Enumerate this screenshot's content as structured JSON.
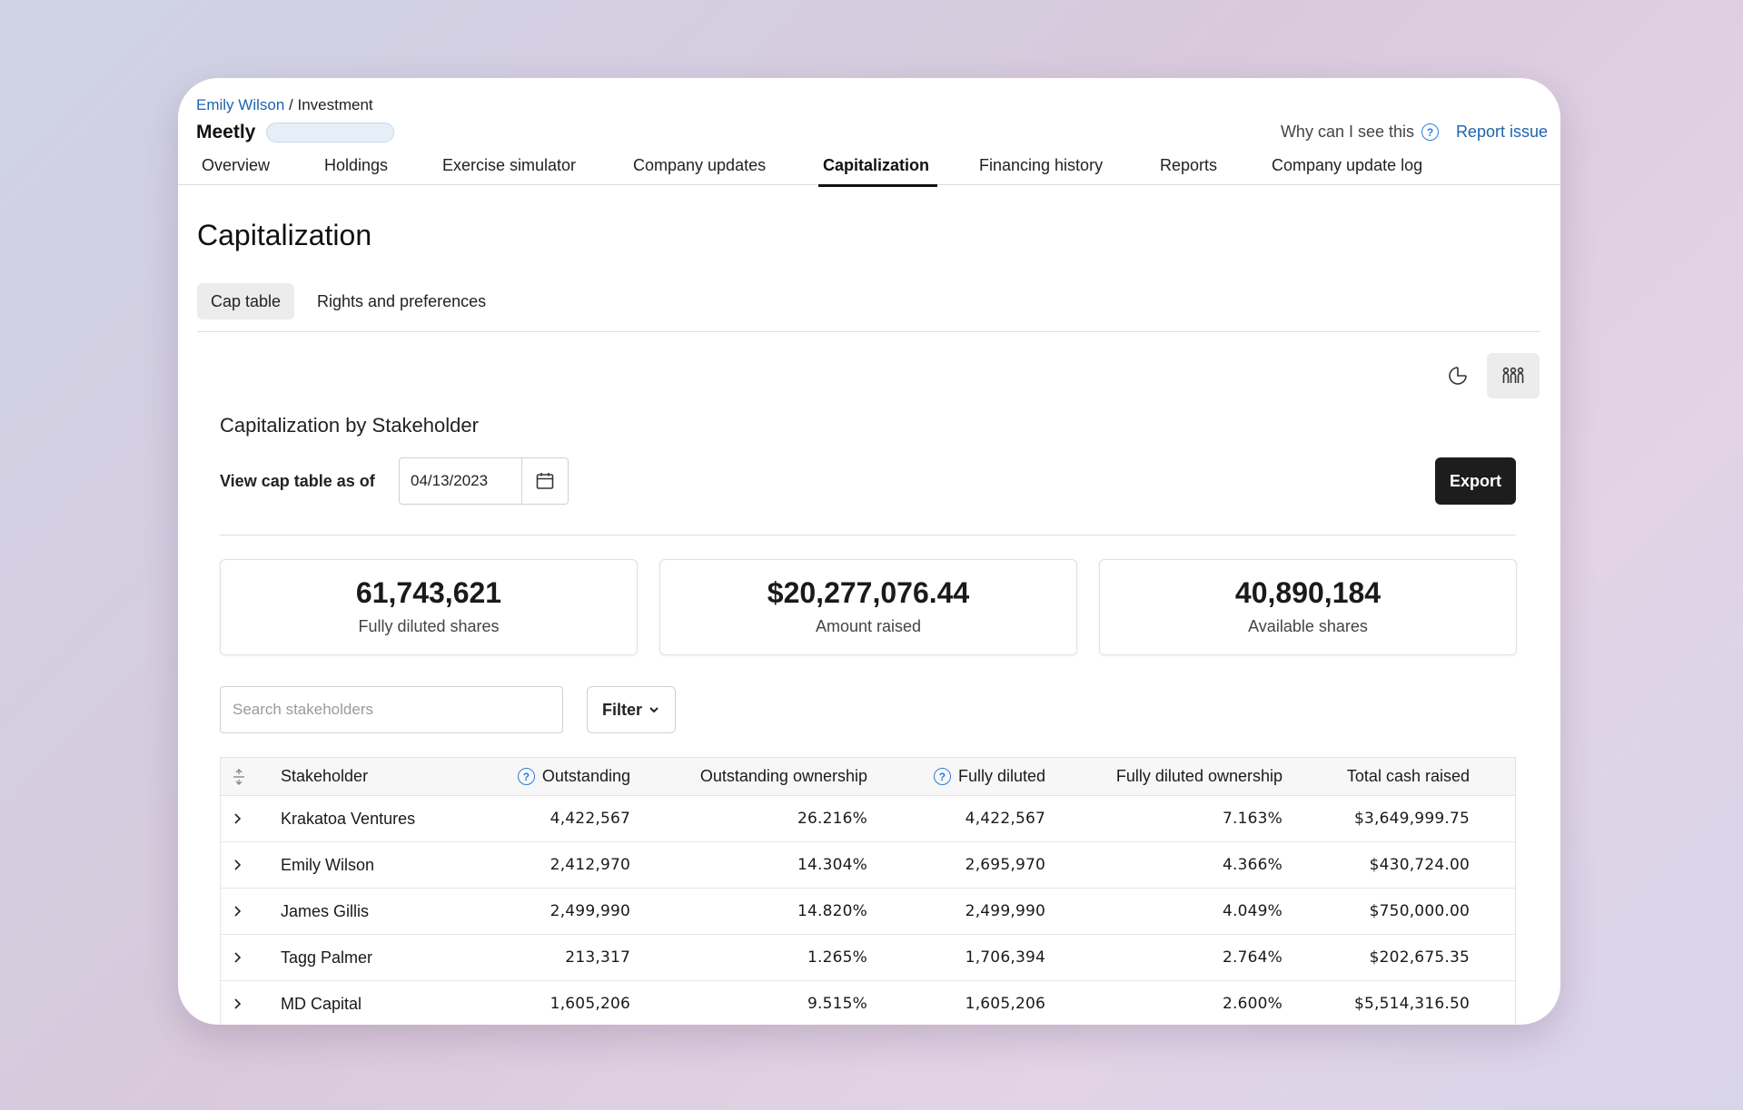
{
  "header": {
    "breadcrumb_link": "Emily Wilson",
    "breadcrumb_sep": " / ",
    "breadcrumb_current": "Investment",
    "company_name": "Meetly",
    "why_text": "Why can I see this",
    "report_issue": "Report issue"
  },
  "tabs": [
    {
      "label": "Overview"
    },
    {
      "label": "Holdings"
    },
    {
      "label": "Exercise simulator"
    },
    {
      "label": "Company updates"
    },
    {
      "label": "Capitalization",
      "active": true
    },
    {
      "label": "Financing history"
    },
    {
      "label": "Reports"
    },
    {
      "label": "Company update log"
    }
  ],
  "page": {
    "title": "Capitalization",
    "subtabs": [
      {
        "label": "Cap table",
        "active": true
      },
      {
        "label": "Rights and preferences"
      }
    ]
  },
  "view_toggles": {
    "pie": "pie-chart-icon",
    "people": "people-icon",
    "active": "people"
  },
  "section": {
    "title": "Capitalization by Stakeholder",
    "asof_label": "View cap table as of",
    "date_value": "04/13/2023",
    "export_label": "Export"
  },
  "stats": [
    {
      "value": "61,743,621",
      "label": "Fully diluted shares"
    },
    {
      "value": "$20,277,076.44",
      "label": "Amount raised"
    },
    {
      "value": "40,890,184",
      "label": "Available shares"
    }
  ],
  "search": {
    "placeholder": "Search stakeholders",
    "value": ""
  },
  "filter_label": "Filter",
  "table": {
    "headers": [
      "Stakeholder",
      "Outstanding",
      "Outstanding ownership",
      "Fully diluted",
      "Fully diluted ownership",
      "Total cash raised"
    ],
    "rows": [
      [
        "Krakatoa Ventures",
        "4,422,567",
        "26.216%",
        "4,422,567",
        "7.163%",
        "$3,649,999.75"
      ],
      [
        "Emily Wilson",
        "2,412,970",
        "14.304%",
        "2,695,970",
        "4.366%",
        "$430,724.00"
      ],
      [
        "James Gillis",
        "2,499,990",
        "14.820%",
        "2,499,990",
        "4.049%",
        "$750,000.00"
      ],
      [
        "Tagg Palmer",
        "213,317",
        "1.265%",
        "1,706,394",
        "2.764%",
        "$202,675.35"
      ],
      [
        "MD Capital",
        "1,605,206",
        "9.515%",
        "1,605,206",
        "2.600%",
        "$5,514,316.50"
      ]
    ]
  },
  "colors": {
    "link": "#1d64b0",
    "help": "#2a7de1",
    "export_bg": "#1d1d1d"
  }
}
